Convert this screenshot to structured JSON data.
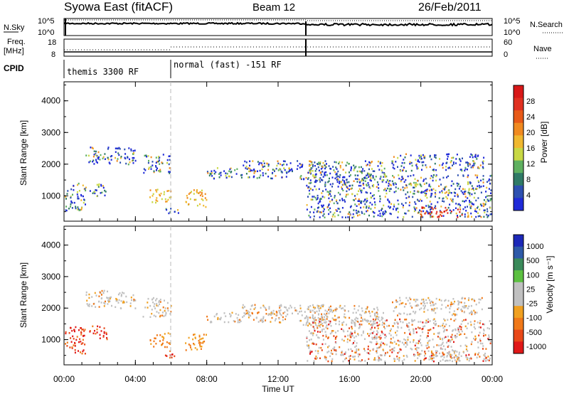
{
  "header": {
    "title": "Syowa East (fitACF)",
    "beam": "Beam 12",
    "date": "26/Feb/2011"
  },
  "panels": {
    "nsky": {
      "label": "N.Sky",
      "right_label": "N.Search",
      "ticks_left": [
        "10^5",
        "10^0"
      ],
      "ticks_right": [
        "10^5",
        "10^0"
      ]
    },
    "freq": {
      "label_line1": "Freq.",
      "label_line2": "[MHz]",
      "right_label": "Nave",
      "ticks_left": [
        "18",
        "8"
      ],
      "ticks_right": [
        "60",
        "0"
      ]
    },
    "cpid": {
      "label": "CPID",
      "modes": [
        "themis 3300 RF",
        "normal (fast) -151 RF"
      ]
    }
  },
  "x_axis": {
    "label": "Time UT",
    "ticks": [
      "00:00",
      "04:00",
      "08:00",
      "12:00",
      "16:00",
      "20:00",
      "00:00"
    ]
  },
  "chart_data": [
    {
      "type": "heatmap",
      "title": "",
      "ylabel": "Slant Range [km]",
      "ylim": [
        200,
        4600
      ],
      "yticks": [
        1000,
        2000,
        3000,
        4000
      ],
      "colorbar": {
        "label": "Power [dB]",
        "ticks": [
          "4",
          "8",
          "12",
          "16",
          "20",
          "24",
          "28"
        ],
        "colors": [
          "#1f2ad8",
          "#2d50b0",
          "#2f7a66",
          "#5fb060",
          "#c8d844",
          "#f0b830",
          "#f08a20",
          "#e85a18",
          "#e03020",
          "#d81818"
        ]
      }
    },
    {
      "type": "heatmap",
      "title": "",
      "ylabel": "Slant Range [km]",
      "ylim": [
        200,
        4600
      ],
      "yticks": [
        1000,
        2000,
        3000,
        4000
      ],
      "colorbar": {
        "label": "Velocity  [m s⁻¹]",
        "ticks": [
          "1000",
          "500",
          "100",
          "25",
          "-25",
          "-100",
          "-500",
          "-1000"
        ],
        "colors": [
          "#1c28b8",
          "#2e5aa8",
          "#3a8a5a",
          "#5cc040",
          "#c0c0c0",
          "#c0c0c0",
          "#f0a020",
          "#f07818",
          "#e84818",
          "#e01818"
        ]
      }
    }
  ]
}
